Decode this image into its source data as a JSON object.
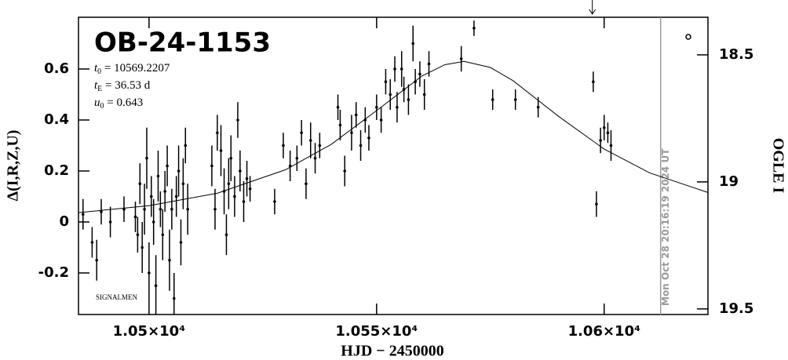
{
  "chart_data": {
    "type": "errorbar",
    "title": "OB-24-1153",
    "params": [
      {
        "symbol": "t",
        "sub": "0",
        "text": " = 10569.2207"
      },
      {
        "symbol": "t",
        "sub": "E",
        "text": " = 36.53 d"
      },
      {
        "symbol": "u",
        "sub": "0",
        "text": " = 0.643"
      }
    ],
    "credit": "SIGNALMEN",
    "timestamp": "Mon Oct 28 20:16:19 2024 UT",
    "timestamp_x": 10612.4,
    "arrow_x": 10597.4,
    "x_label": "HJD − 2450000",
    "y_label": "Δ(I,R,Z,U)",
    "y2_label": "OGLE I",
    "xlim": [
      10484.5,
      10622.8
    ],
    "ylim": [
      -0.363,
      0.803
    ],
    "y2lim": [
      19.522,
      18.352
    ],
    "xticks": [
      {
        "value": 10500,
        "label": "1.05×10⁴"
      },
      {
        "value": 10550,
        "label": "1.055×10⁴"
      },
      {
        "value": 10600,
        "label": "1.06×10⁴"
      }
    ],
    "yticks": [
      -0.2,
      0,
      0.2,
      0.4,
      0.6
    ],
    "y2ticks": [
      18.5,
      19,
      19.5
    ],
    "color": "#000000",
    "model_color": "#000000",
    "timestamp_color": "#999999",
    "series": [
      {
        "x": [
          10485.5,
          10487.5,
          10488.5,
          10489.5,
          10491.5,
          10494.5,
          10497.0,
          10497.5,
          10498.0,
          10498.5,
          10499.0,
          10499.5,
          10500.0,
          10500.5,
          10501.0,
          10501.5,
          10502.0,
          10502.5,
          10503.0,
          10503.5,
          10504.0,
          10504.5,
          10505.0,
          10505.5,
          10506.0,
          10506.5,
          10507.0,
          10507.5,
          10508.0,
          10508.5,
          10513.8,
          10514.5,
          10515.0,
          10515.8,
          10516.5,
          10517.0,
          10517.5,
          10518.0,
          10518.8,
          10519.5,
          10520.0,
          10520.8,
          10521.5,
          10522.2,
          10527.6,
          10529.5,
          10531.0,
          10532.5,
          10533.5,
          10534.5,
          10535.5,
          10536.5,
          10537.5,
          10541.5,
          10542.0,
          10543.0,
          10544.5,
          10545.5,
          10546.5,
          10547.5,
          10548.3,
          10550.0,
          10551.0,
          10552.0,
          10553.0,
          10554.0,
          10554.5,
          10555.5,
          10556.0,
          10557.0,
          10558.0,
          10558.5,
          10559.5,
          10560.5,
          10561.5,
          10568.6,
          10571.4,
          10575.5,
          10580.5,
          10585.5,
          10597.6,
          10598.3,
          10599.2,
          10600.0,
          10600.8,
          10601.5
        ],
        "values": [
          0.03,
          -0.08,
          -0.15,
          0.04,
          0.0,
          0.05,
          0.02,
          -0.05,
          0.15,
          -0.1,
          0.05,
          0.25,
          -0.2,
          0.1,
          0.0,
          -0.25,
          0.18,
          0.05,
          -0.05,
          0.12,
          0.22,
          -0.15,
          0.05,
          -0.3,
          0.1,
          0.2,
          -0.08,
          0.15,
          0.3,
          0.05,
          0.22,
          0.05,
          0.35,
          0.28,
          0.12,
          -0.05,
          0.15,
          0.25,
          0.1,
          0.4,
          0.2,
          0.08,
          0.17,
          0.13,
          0.08,
          0.3,
          0.22,
          0.25,
          0.35,
          0.15,
          0.32,
          0.25,
          0.3,
          0.45,
          0.38,
          0.2,
          0.35,
          0.42,
          0.3,
          0.4,
          0.33,
          0.45,
          0.4,
          0.55,
          0.5,
          0.6,
          0.45,
          0.6,
          0.52,
          0.48,
          0.7,
          0.55,
          0.58,
          0.5,
          0.62,
          0.64,
          0.76,
          0.48,
          0.48,
          0.45,
          0.55,
          0.07,
          0.32,
          0.37,
          0.35,
          0.3
        ],
        "errors": [
          0.06,
          0.06,
          0.08,
          0.05,
          0.06,
          0.05,
          0.06,
          0.07,
          0.08,
          0.1,
          0.1,
          0.12,
          0.12,
          0.08,
          0.09,
          0.12,
          0.1,
          0.07,
          0.1,
          0.08,
          0.08,
          0.12,
          0.08,
          0.1,
          0.08,
          0.1,
          0.09,
          0.1,
          0.07,
          0.1,
          0.08,
          0.08,
          0.07,
          0.1,
          0.09,
          0.08,
          0.1,
          0.09,
          0.08,
          0.07,
          0.08,
          0.08,
          0.07,
          0.05,
          0.05,
          0.05,
          0.06,
          0.05,
          0.05,
          0.06,
          0.07,
          0.06,
          0.05,
          0.05,
          0.06,
          0.06,
          0.07,
          0.05,
          0.06,
          0.05,
          0.05,
          0.05,
          0.05,
          0.05,
          0.06,
          0.05,
          0.06,
          0.07,
          0.05,
          0.06,
          0.07,
          0.05,
          0.05,
          0.06,
          0.05,
          0.05,
          0.03,
          0.04,
          0.04,
          0.04,
          0.04,
          0.05,
          0.05,
          0.05,
          0.04,
          0.06
        ]
      }
    ],
    "model": {
      "x": [
        10484.5,
        10500,
        10515,
        10530,
        10540,
        10550,
        10560,
        10565,
        10569.2207,
        10575,
        10580,
        10590,
        10600,
        10610,
        10622.8
      ],
      "values": [
        0.0367,
        0.0639,
        0.1128,
        0.205,
        0.304,
        0.437,
        0.573,
        0.617,
        0.63,
        0.606,
        0.554,
        0.414,
        0.286,
        0.1925,
        0.1156
      ]
    }
  }
}
